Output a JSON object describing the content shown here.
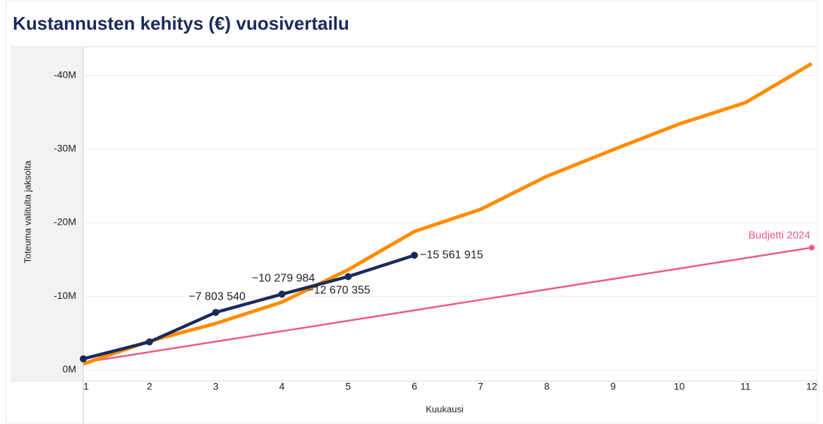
{
  "chart_data": {
    "type": "line",
    "title": "Kustannusten kehitys (€) vuosivertailu",
    "xlabel": "Kuukausi",
    "ylabel": "Toteuma valitulta jaksolta",
    "x": [
      1,
      2,
      3,
      4,
      5,
      6,
      7,
      8,
      9,
      10,
      11,
      12
    ],
    "xlim": [
      1,
      12
    ],
    "xticks": [
      1,
      2,
      3,
      4,
      5,
      6,
      7,
      8,
      9,
      10,
      11,
      12
    ],
    "ylim": [
      1500000,
      -44000000
    ],
    "yticks": [
      {
        "value": 0,
        "label": "0M"
      },
      {
        "value": -10000000,
        "label": "-10M"
      },
      {
        "value": -20000000,
        "label": "-20M"
      },
      {
        "value": -30000000,
        "label": "-30M"
      },
      {
        "value": -40000000,
        "label": "-40M"
      }
    ],
    "grid": true,
    "series": [
      {
        "name": "Budjetti 2024",
        "color": "#f0588a",
        "values": [
          -1000000,
          -2420000,
          -3840000,
          -5250000,
          -6670000,
          -8090000,
          -9510000,
          -10930000,
          -12350000,
          -13760000,
          -15180000,
          -16600000
        ]
      },
      {
        "color": "#ff8c00",
        "values": [
          -800000,
          -3900000,
          -6300000,
          -9200000,
          -13600000,
          -18800000,
          -21800000,
          -26300000,
          -29900000,
          -33400000,
          -36300000,
          -41600000
        ]
      },
      {
        "color": "#1b2a5c",
        "values": [
          -1500000,
          -3800000,
          -7803540,
          -10279984,
          -12670355,
          -15561915,
          null,
          null,
          null,
          null,
          null,
          null
        ],
        "value_labels": [
          null,
          null,
          "−7 803 540",
          "−10 279 984",
          "−12 670 355",
          "−15 561 915",
          null,
          null,
          null,
          null,
          null,
          null
        ]
      }
    ]
  }
}
